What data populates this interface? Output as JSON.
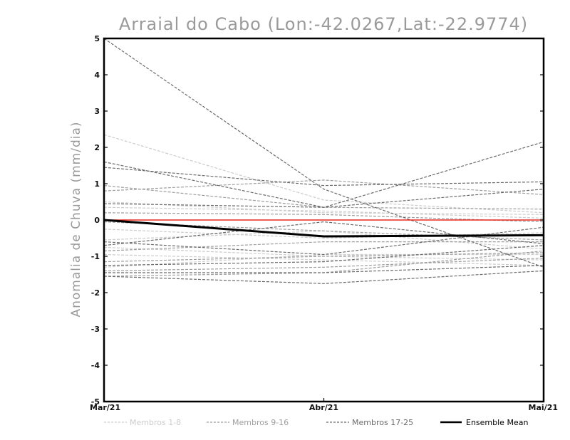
{
  "chart_data": {
    "type": "line",
    "title": "Arraial do Cabo (Lon:-42.0267,Lat:-22.9774)",
    "xlabel": "",
    "ylabel": "Anomalia de Chuva (mm/dia)",
    "categories": [
      "Mar/21",
      "Abr/21",
      "Mai/21"
    ],
    "ylim": [
      -5,
      5
    ],
    "yticks": [
      "5",
      "4",
      "3",
      "2",
      "1",
      "0",
      "-1",
      "-2",
      "-3",
      "-4",
      "-5"
    ],
    "ytick_values": [
      5,
      4,
      3,
      2,
      1,
      0,
      -1,
      -2,
      -3,
      -4,
      -5
    ],
    "reference_line": {
      "y": 0,
      "color": "#e8281e"
    },
    "groups": [
      {
        "name": "Membros 1-8",
        "color": "#cccccc"
      },
      {
        "name": "Membros 9-16",
        "color": "#9e9e9e"
      },
      {
        "name": "Membros 17-25",
        "color": "#6b6b6b"
      }
    ],
    "series": [
      {
        "group": 0,
        "values": [
          2.35,
          0.55,
          0.2
        ]
      },
      {
        "group": 0,
        "values": [
          0.5,
          0.2,
          0.15
        ]
      },
      {
        "group": 0,
        "values": [
          0.35,
          0.25,
          0.05
        ]
      },
      {
        "group": 0,
        "values": [
          -0.25,
          -0.5,
          -0.35
        ]
      },
      {
        "group": 0,
        "values": [
          -0.75,
          -1.0,
          -1.1
        ]
      },
      {
        "group": 0,
        "values": [
          -0.95,
          -1.1,
          -1.25
        ]
      },
      {
        "group": 0,
        "values": [
          -1.3,
          -0.95,
          -0.95
        ]
      },
      {
        "group": 0,
        "values": [
          -0.55,
          -0.3,
          -0.8
        ]
      },
      {
        "group": 1,
        "values": [
          0.8,
          1.1,
          0.7
        ]
      },
      {
        "group": 1,
        "values": [
          0.95,
          0.35,
          0.3
        ]
      },
      {
        "group": 1,
        "values": [
          0.2,
          0.15,
          -0.05
        ]
      },
      {
        "group": 1,
        "values": [
          -0.05,
          -0.3,
          -0.55
        ]
      },
      {
        "group": 1,
        "values": [
          -0.85,
          -0.6,
          -0.6
        ]
      },
      {
        "group": 1,
        "values": [
          -1.15,
          -1.0,
          -0.9
        ]
      },
      {
        "group": 1,
        "values": [
          -1.4,
          -1.3,
          -1.05
        ]
      },
      {
        "group": 1,
        "values": [
          -1.55,
          -1.45,
          -0.85
        ]
      },
      {
        "group": 2,
        "values": [
          5.0,
          0.85,
          -1.3
        ]
      },
      {
        "group": 2,
        "values": [
          1.6,
          0.35,
          2.15
        ]
      },
      {
        "group": 2,
        "values": [
          1.45,
          0.95,
          1.05
        ]
      },
      {
        "group": 2,
        "values": [
          0.45,
          0.35,
          0.85
        ]
      },
      {
        "group": 2,
        "values": [
          -0.7,
          -0.05,
          -0.65
        ]
      },
      {
        "group": 2,
        "values": [
          -0.6,
          -0.95,
          -0.2
        ]
      },
      {
        "group": 2,
        "values": [
          -1.25,
          -1.15,
          -0.7
        ]
      },
      {
        "group": 2,
        "values": [
          -1.45,
          -1.45,
          -1.25
        ]
      },
      {
        "group": 2,
        "values": [
          -1.55,
          -1.75,
          -1.4
        ]
      }
    ],
    "ensemble_mean": {
      "name": "Ensemble Mean",
      "color": "#000000",
      "values": [
        0.0,
        -0.45,
        -0.42
      ]
    },
    "legend": {
      "placement": "bottom",
      "items": [
        {
          "label": "Membros 1-8",
          "color": "#cccccc",
          "style": "dashed"
        },
        {
          "label": "Membros 9-16",
          "color": "#9e9e9e",
          "style": "dashed"
        },
        {
          "label": "Membros 17-25",
          "color": "#6b6b6b",
          "style": "dashed"
        },
        {
          "label": "Ensemble Mean",
          "color": "#000000",
          "style": "solid"
        }
      ]
    },
    "grid": false
  }
}
